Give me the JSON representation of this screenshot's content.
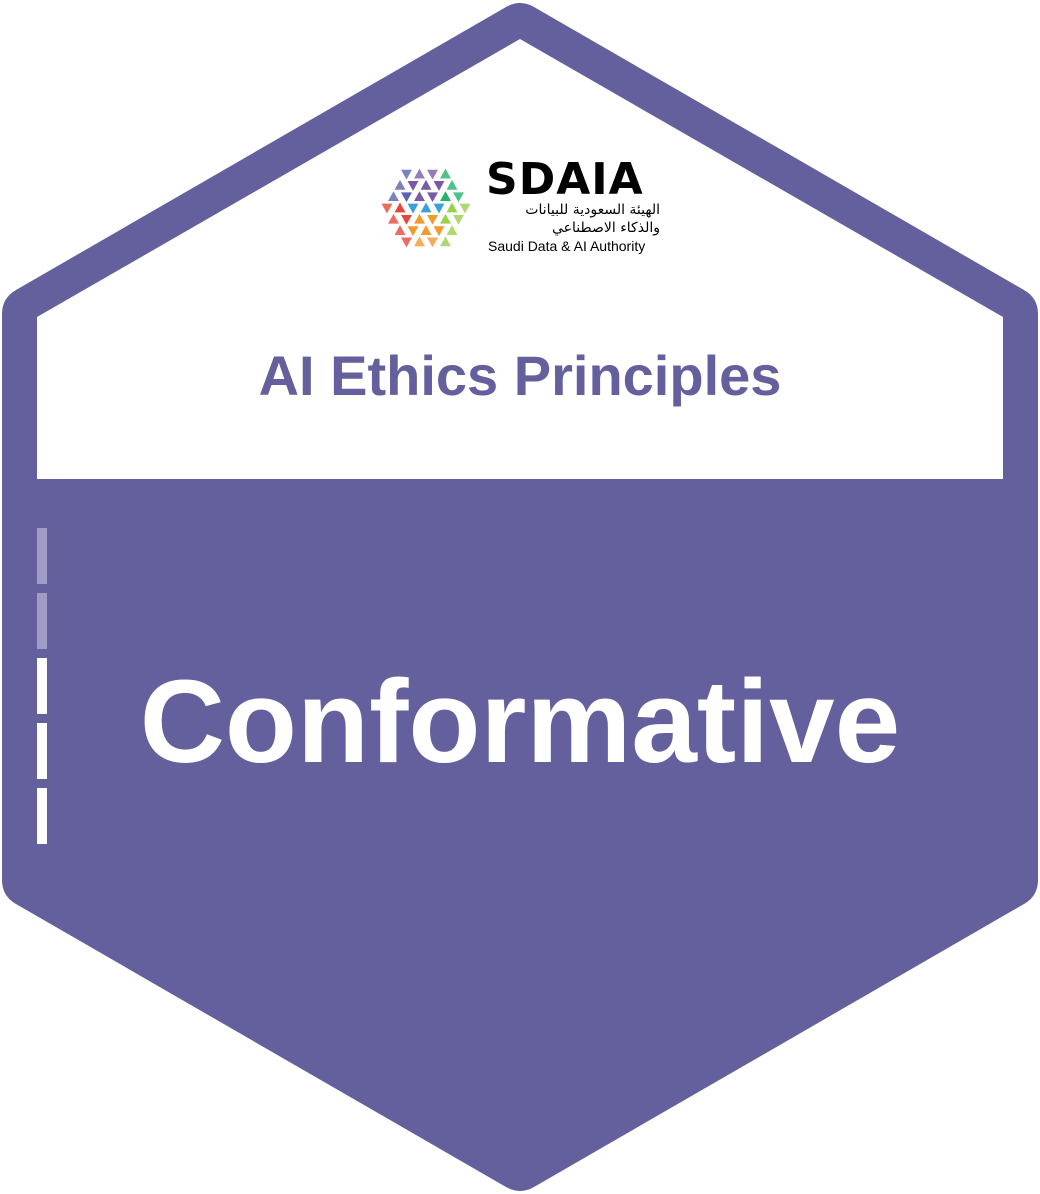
{
  "colors": {
    "badge_purple": "#645f9d",
    "inner_white": "#ffffff",
    "title_text": "#645f9d",
    "level_text": "#ffffff",
    "logo_text": "#000000",
    "progress_filled": "#ffffff",
    "progress_empty": "#9f9cc6",
    "logo_palette": [
      "#5a63b0",
      "#3aa0d8",
      "#24b36b",
      "#9bd04a",
      "#f39a2d",
      "#e8463b",
      "#7a5aa8"
    ]
  },
  "logo": {
    "name": "SDAIA",
    "arabic_line1": "الهيئة السعودية للبيانات",
    "arabic_line2": "والذكاء الاصطناعي",
    "english": "Saudi Data & AI Authority",
    "icon": "sdaia-hexagon-triangles-icon"
  },
  "badge": {
    "title": "AI Ethics Principles",
    "level": "Conformative",
    "level_indicator": {
      "total_steps": 5,
      "filled_steps": 3
    }
  }
}
